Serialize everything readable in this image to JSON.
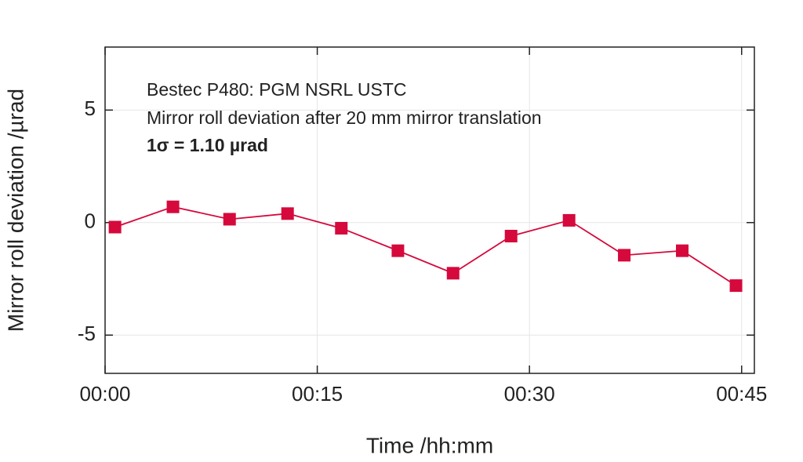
{
  "chart_data": {
    "type": "line",
    "xlabel": "Time /hh:mm",
    "ylabel": "Mirror roll deviation /µrad",
    "annotations": [
      "Bestec P480: PGM NSRL USTC",
      "Mirror roll deviation after 20 mm mirror translation",
      "1σ = 1.10 µrad"
    ],
    "x": [
      0.7,
      4.8,
      8.8,
      12.9,
      16.7,
      20.7,
      24.6,
      28.7,
      32.8,
      36.7,
      40.8,
      44.6
    ],
    "series": [
      {
        "name": "Mirror roll deviation",
        "color": "#d5093c",
        "values": [
          -0.2,
          0.7,
          0.15,
          0.4,
          -0.25,
          -1.25,
          -2.25,
          -0.6,
          0.1,
          -1.45,
          -1.25,
          -2.8
        ]
      }
    ],
    "xlim": [
      0,
      45.9
    ],
    "xticks": [
      {
        "value": 0,
        "label": "00:00"
      },
      {
        "value": 15,
        "label": "00:15"
      },
      {
        "value": 30,
        "label": "00:30"
      },
      {
        "value": 45,
        "label": "00:45"
      }
    ],
    "ylim": [
      -6.7,
      7.8
    ],
    "yticks": [
      -5,
      0,
      5
    ],
    "grid": true
  }
}
